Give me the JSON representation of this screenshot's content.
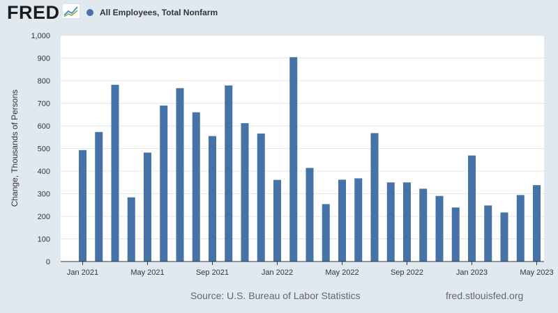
{
  "header": {
    "logo_text": "FRED",
    "logo_icon": "line-chart-icon"
  },
  "footer": {
    "source": "Source: U.S. Bureau of Labor Statistics",
    "url": "fred.stlouisfed.org"
  },
  "colors": {
    "background": "#e1e9f0",
    "plot_background": "#ffffff",
    "bar": "#4572a7",
    "grid": "#e6e6e6"
  },
  "chart_data": {
    "type": "bar",
    "title": "",
    "ylabel": "Change, Thousands of Persons",
    "xlabel": "",
    "ylim": [
      0,
      1000
    ],
    "yticks": [
      0,
      100,
      200,
      300,
      400,
      500,
      600,
      700,
      800,
      900,
      1000
    ],
    "ytick_labels": [
      "0",
      "100",
      "200",
      "300",
      "400",
      "500",
      "600",
      "700",
      "800",
      "900",
      "1,000"
    ],
    "grid": true,
    "legend_placement": "top-left",
    "categories": [
      "Jan 2021",
      "Feb 2021",
      "Mar 2021",
      "Apr 2021",
      "May 2021",
      "Jun 2021",
      "Jul 2021",
      "Aug 2021",
      "Sep 2021",
      "Oct 2021",
      "Nov 2021",
      "Dec 2021",
      "Jan 2022",
      "Feb 2022",
      "Mar 2022",
      "Apr 2022",
      "May 2022",
      "Jun 2022",
      "Jul 2022",
      "Aug 2022",
      "Sep 2022",
      "Oct 2022",
      "Nov 2022",
      "Dec 2022",
      "Jan 2023",
      "Feb 2023",
      "Mar 2023",
      "Apr 2023",
      "May 2023"
    ],
    "xtick_labels": [
      {
        "index": 0,
        "label": "Jan 2021"
      },
      {
        "index": 4,
        "label": "May 2021"
      },
      {
        "index": 8,
        "label": "Sep 2021"
      },
      {
        "index": 12,
        "label": "Jan 2022"
      },
      {
        "index": 16,
        "label": "May 2022"
      },
      {
        "index": 20,
        "label": "Sep 2022"
      },
      {
        "index": 24,
        "label": "Jan 2023"
      },
      {
        "index": 28,
        "label": "May 2023"
      }
    ],
    "series": [
      {
        "name": "All Employees, Total Nonfarm",
        "values": [
          493,
          573,
          782,
          284,
          482,
          690,
          767,
          660,
          555,
          779,
          612,
          566,
          361,
          904,
          414,
          254,
          362,
          368,
          568,
          350,
          350,
          322,
          290,
          239,
          469,
          248,
          217,
          294,
          338
        ]
      }
    ]
  }
}
